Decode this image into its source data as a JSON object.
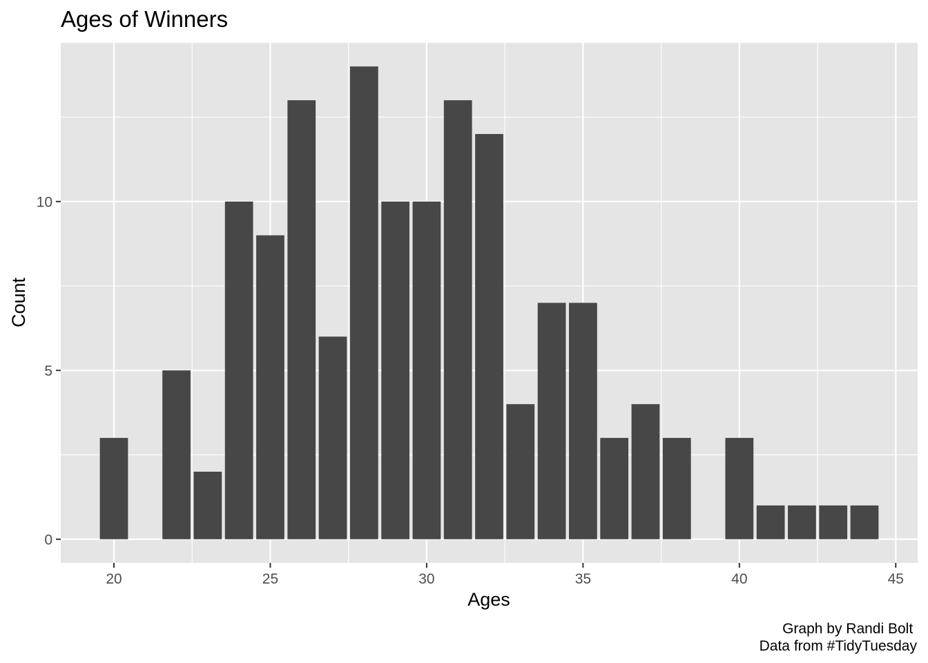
{
  "chart_data": {
    "type": "bar",
    "title": "Ages of Winners",
    "xlabel": "Ages",
    "ylabel": "Count",
    "x": [
      20,
      22,
      23,
      24,
      25,
      26,
      27,
      28,
      29,
      30,
      31,
      32,
      33,
      34,
      35,
      36,
      37,
      38,
      40,
      41,
      42,
      43,
      44
    ],
    "values": [
      3,
      5,
      2,
      10,
      9,
      13,
      6,
      14,
      10,
      10,
      13,
      12,
      4,
      7,
      7,
      3,
      4,
      3,
      3,
      1,
      1,
      1,
      1
    ],
    "xlim": [
      18.3,
      45.7
    ],
    "ylim": [
      -0.7,
      14.7
    ],
    "x_ticks": [
      20,
      25,
      30,
      35,
      40,
      45
    ],
    "y_ticks": [
      0,
      5,
      10
    ],
    "grid": true,
    "colors": {
      "panel_background": "#e5e5e5",
      "grid": "#ffffff",
      "bar": "#474747"
    }
  },
  "caption": {
    "line1": "Graph by Randi Bolt ",
    "line2": "Data from #TidyTuesday"
  }
}
